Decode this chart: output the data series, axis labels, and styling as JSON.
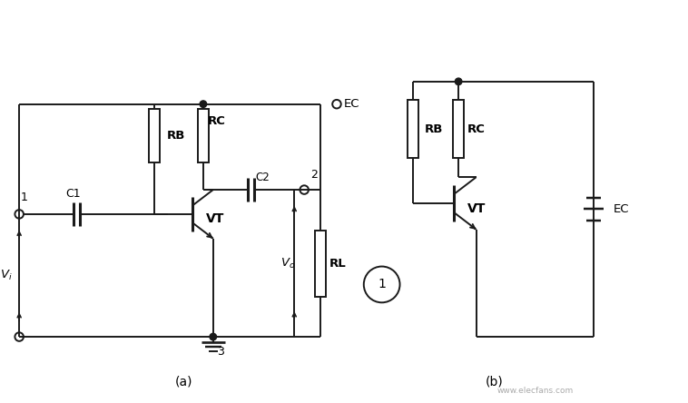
{
  "bg_color": "#ffffff",
  "line_color": "#1a1a1a",
  "line_width": 1.4,
  "fig_width": 7.58,
  "fig_height": 4.44,
  "label_a": "(a)",
  "label_b": "(b)",
  "circle_label": "1",
  "watermark": "www.elecfans.com"
}
